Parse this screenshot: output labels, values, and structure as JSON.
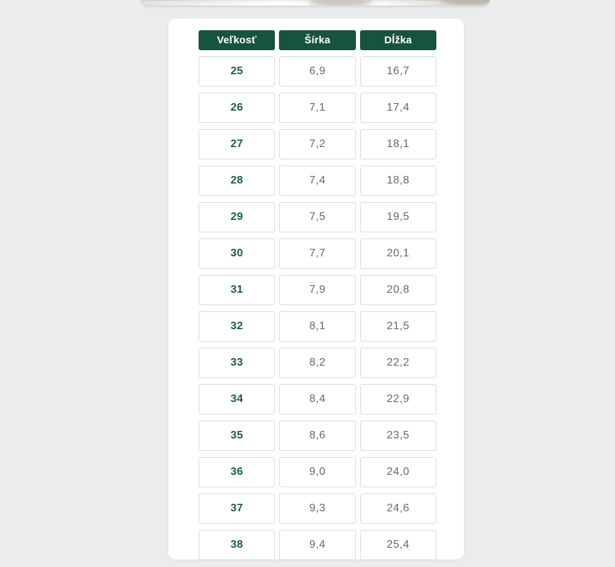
{
  "page": {
    "background_color": "#ebeced"
  },
  "theme": {
    "header_bg": "#17543f",
    "size_text_color": "#1c5b48",
    "value_text_color": "#63676a",
    "cell_border_color": "#d9d9d9",
    "card_bg": "#ffffff"
  },
  "size_table": {
    "columns": [
      {
        "label": "Veľkosť"
      },
      {
        "label": "Šírka"
      },
      {
        "label": "Dĺžka"
      }
    ],
    "rows": [
      {
        "size": "25",
        "width": "6,9",
        "length": "16,7"
      },
      {
        "size": "26",
        "width": "7,1",
        "length": "17,4"
      },
      {
        "size": "27",
        "width": "7,2",
        "length": "18,1"
      },
      {
        "size": "28",
        "width": "7,4",
        "length": "18,8"
      },
      {
        "size": "29",
        "width": "7,5",
        "length": "19,5"
      },
      {
        "size": "30",
        "width": "7,7",
        "length": "20,1"
      },
      {
        "size": "31",
        "width": "7,9",
        "length": "20,8"
      },
      {
        "size": "32",
        "width": "8,1",
        "length": "21,5"
      },
      {
        "size": "33",
        "width": "8,2",
        "length": "22,2"
      },
      {
        "size": "34",
        "width": "8,4",
        "length": "22,9"
      },
      {
        "size": "35",
        "width": "8,6",
        "length": "23,5"
      },
      {
        "size": "36",
        "width": "9,0",
        "length": "24,0"
      },
      {
        "size": "37",
        "width": "9,3",
        "length": "24,6"
      },
      {
        "size": "38",
        "width": "9,4",
        "length": "25,4"
      }
    ]
  }
}
